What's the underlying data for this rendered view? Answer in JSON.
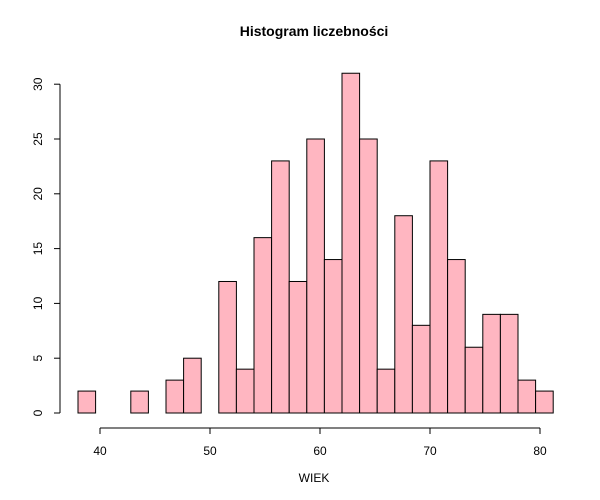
{
  "chart_data": {
    "type": "bar",
    "title": "Histogram liczebności",
    "xlabel": "WIEK",
    "ylabel": "",
    "xlim": [
      38,
      81
    ],
    "ylim": [
      0,
      31
    ],
    "bin_width": 1.6,
    "bins": [
      {
        "start": 38.0,
        "end": 39.6,
        "count": 2
      },
      {
        "start": 39.6,
        "end": 41.2,
        "count": 0
      },
      {
        "start": 41.2,
        "end": 42.8,
        "count": 0
      },
      {
        "start": 42.8,
        "end": 44.4,
        "count": 2
      },
      {
        "start": 44.4,
        "end": 46.0,
        "count": 0
      },
      {
        "start": 46.0,
        "end": 47.6,
        "count": 3
      },
      {
        "start": 47.6,
        "end": 49.2,
        "count": 5
      },
      {
        "start": 49.2,
        "end": 50.8,
        "count": 0
      },
      {
        "start": 50.8,
        "end": 52.4,
        "count": 12
      },
      {
        "start": 52.4,
        "end": 54.0,
        "count": 4
      },
      {
        "start": 54.0,
        "end": 55.6,
        "count": 16
      },
      {
        "start": 55.6,
        "end": 57.2,
        "count": 23
      },
      {
        "start": 57.2,
        "end": 58.8,
        "count": 12
      },
      {
        "start": 58.8,
        "end": 60.4,
        "count": 25
      },
      {
        "start": 60.4,
        "end": 62.0,
        "count": 14
      },
      {
        "start": 62.0,
        "end": 63.6,
        "count": 31
      },
      {
        "start": 63.6,
        "end": 65.2,
        "count": 25
      },
      {
        "start": 65.2,
        "end": 66.8,
        "count": 4
      },
      {
        "start": 66.8,
        "end": 68.4,
        "count": 18
      },
      {
        "start": 68.4,
        "end": 70.0,
        "count": 8
      },
      {
        "start": 70.0,
        "end": 71.6,
        "count": 23
      },
      {
        "start": 71.6,
        "end": 73.2,
        "count": 14
      },
      {
        "start": 73.2,
        "end": 74.8,
        "count": 6
      },
      {
        "start": 74.8,
        "end": 76.4,
        "count": 9
      },
      {
        "start": 76.4,
        "end": 78.0,
        "count": 9
      },
      {
        "start": 78.0,
        "end": 79.6,
        "count": 3
      },
      {
        "start": 79.6,
        "end": 81.2,
        "count": 2
      }
    ],
    "x_ticks": [
      "40",
      "50",
      "60",
      "70",
      "80"
    ],
    "y_ticks": [
      "0",
      "5",
      "10",
      "15",
      "20",
      "25",
      "30"
    ],
    "bar_color": "#FFB6C1",
    "grid": false,
    "legend": "none"
  }
}
